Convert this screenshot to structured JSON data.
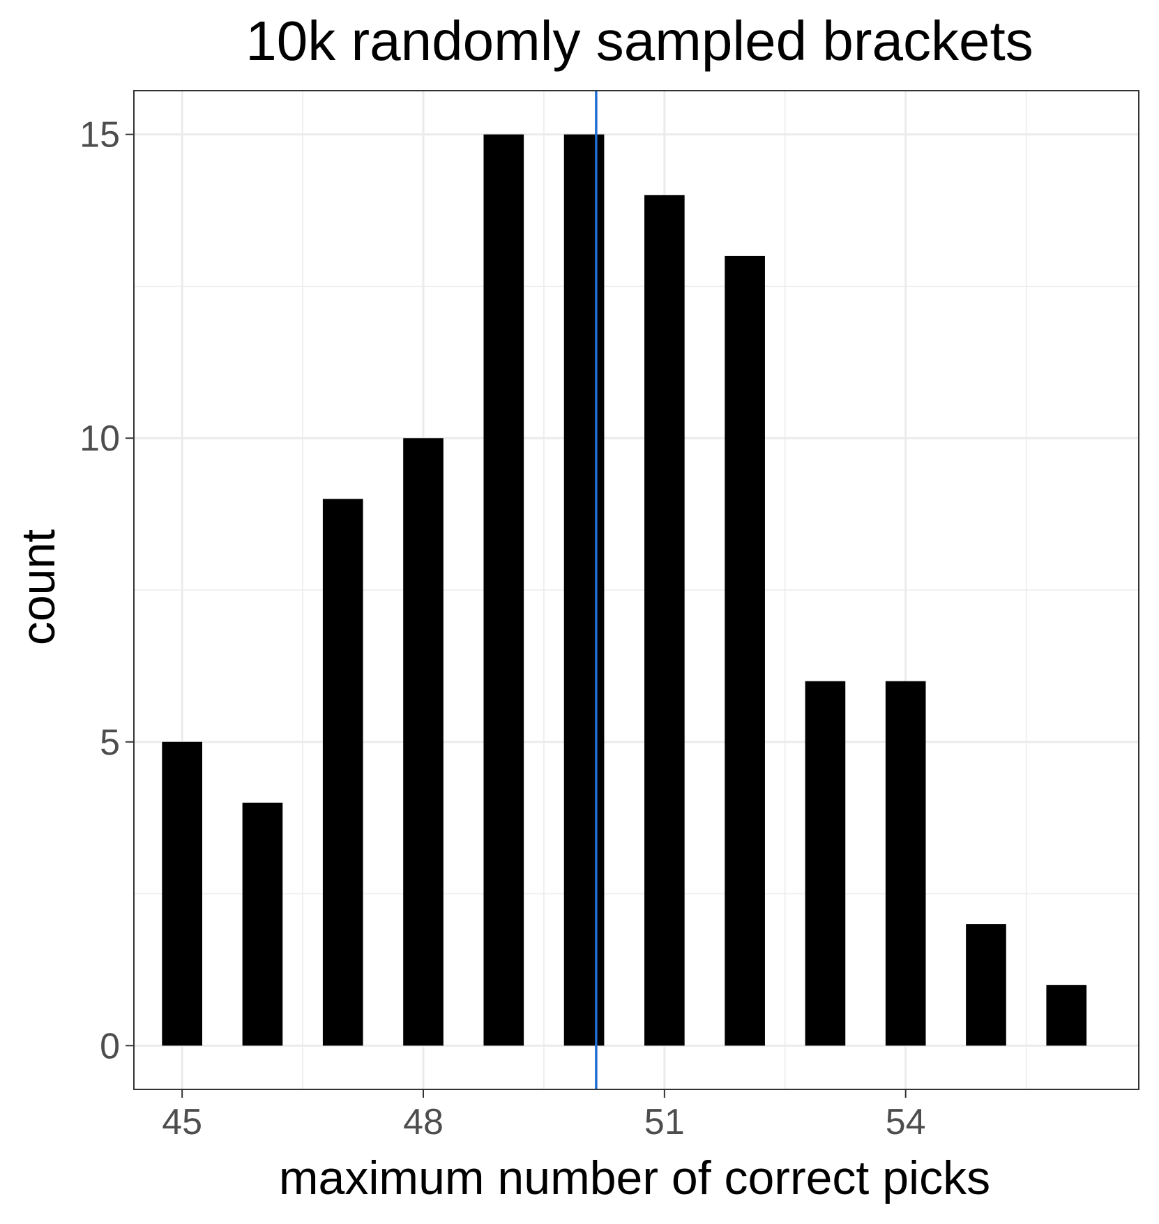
{
  "chart_data": {
    "type": "bar",
    "title": "10k randomly sampled brackets",
    "xlabel": "maximum number of correct picks",
    "ylabel": "count",
    "x": [
      45,
      46,
      47,
      48,
      49,
      50,
      51,
      52,
      53,
      54,
      55,
      56
    ],
    "values": [
      5,
      4,
      9,
      10,
      15,
      15,
      14,
      13,
      6,
      6,
      2,
      1
    ],
    "xlim": [
      44.4,
      56.9
    ],
    "ylim": [
      -0.72,
      15.72
    ],
    "x_ticks": [
      45,
      48,
      51,
      54
    ],
    "x_tick_labels": [
      "45",
      "48",
      "51",
      "54"
    ],
    "y_ticks": [
      0,
      5,
      10,
      15
    ],
    "y_tick_labels": [
      "0",
      "5",
      "10",
      "15"
    ],
    "reference_line": {
      "orientation": "vertical",
      "x": 50.15
    },
    "grid": true,
    "legend": "none",
    "colors": {
      "bar": "#000000",
      "reference_line": "#1f6fd6",
      "grid": "#ebebeb",
      "panel_border": "#333333",
      "tick_label": "#4d4d4d",
      "text": "#000000"
    }
  }
}
